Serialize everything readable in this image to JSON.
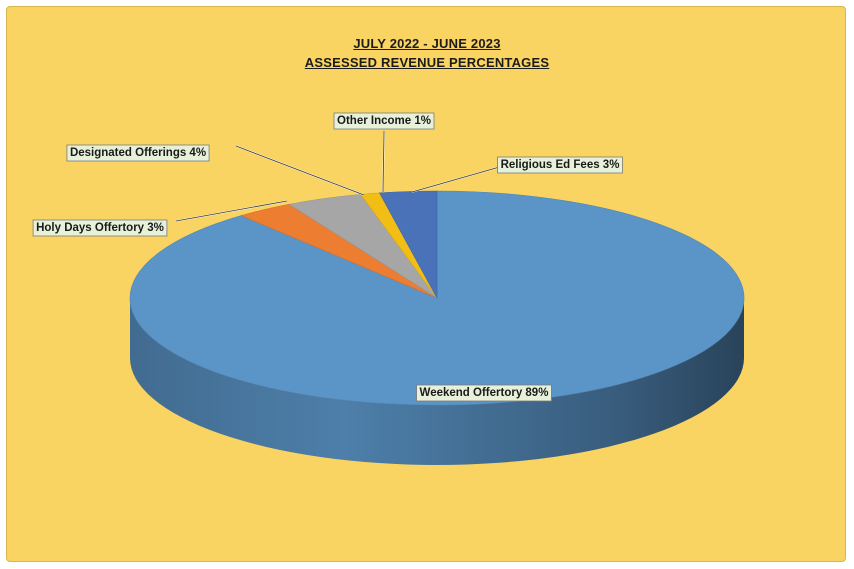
{
  "chart_data": {
    "type": "pie",
    "title": "JULY 2022 - JUNE 2023",
    "subtitle": "ASSESSED REVENUE PERCENTAGES",
    "slices": [
      {
        "label": "Weekend Offertory 89%",
        "value": 89,
        "color": "#5b95c8"
      },
      {
        "label": "Holy Days Offertory 3%",
        "value": 3,
        "color": "#ec7d31"
      },
      {
        "label": "Designated Offerings 4%",
        "value": 4,
        "color": "#a6a6a6"
      },
      {
        "label": "Other Income 1%",
        "value": 1,
        "color": "#f2bd15"
      },
      {
        "label": "Religious Ed Fees 3%",
        "value": 3,
        "color": "#4a72b8"
      }
    ],
    "style": "3d",
    "legend": "none"
  },
  "colors": {
    "background": "#f9d462",
    "label_box": "#e7f1d9"
  }
}
